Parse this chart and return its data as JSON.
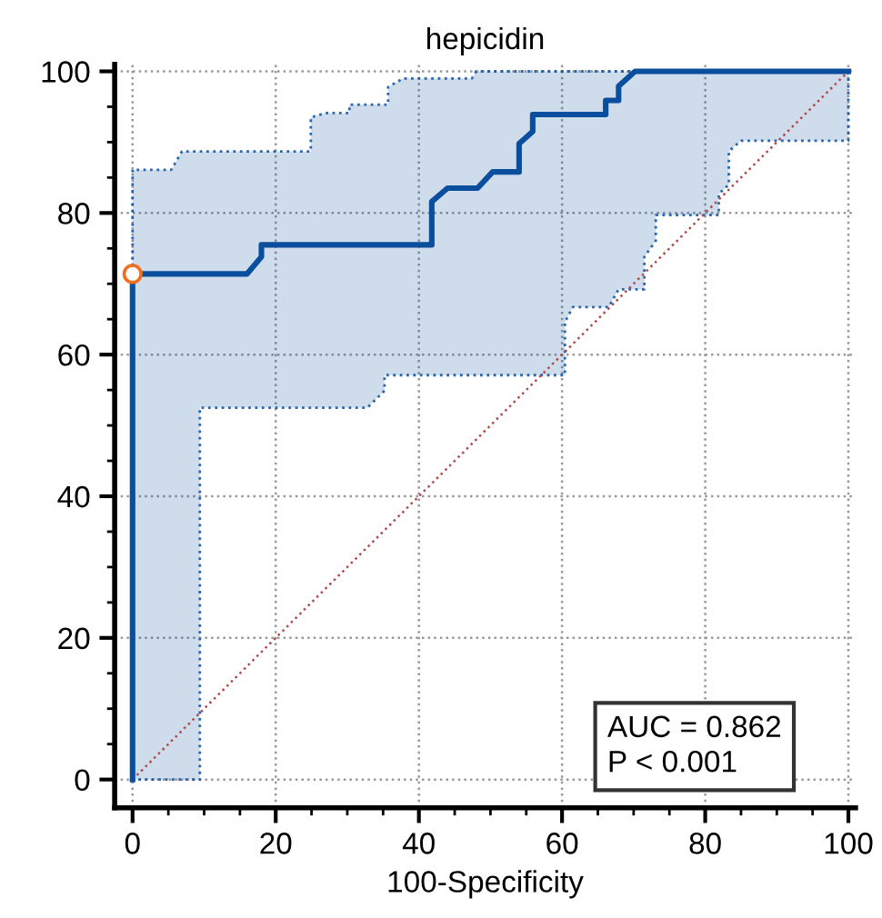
{
  "chart_data": {
    "type": "line",
    "title": "hepicidin",
    "xlabel": "100-Specificity",
    "xlim": [
      -2.5,
      101
    ],
    "ylim": [
      -4,
      101
    ],
    "xticks": [
      0,
      {
        "value": 5,
        "label": null
      },
      {
        "value": 10,
        "label": null
      },
      {
        "value": 15,
        "label": null
      },
      20,
      {
        "value": 25,
        "label": null
      },
      {
        "value": 30,
        "label": null
      },
      {
        "value": 35,
        "label": null
      },
      40,
      {
        "value": 45,
        "label": null
      },
      {
        "value": 50,
        "label": null
      },
      {
        "value": 55,
        "label": null
      },
      60,
      {
        "value": 65,
        "label": null
      },
      {
        "value": 70,
        "label": null
      },
      {
        "value": 75,
        "label": null
      },
      80,
      {
        "value": 85,
        "label": null
      },
      {
        "value": 90,
        "label": null
      },
      {
        "value": 95,
        "label": null
      },
      100
    ],
    "yticks": [
      0,
      {
        "value": 5,
        "label": null
      },
      {
        "value": 10,
        "label": null
      },
      {
        "value": 15,
        "label": null
      },
      20,
      {
        "value": 25,
        "label": null
      },
      {
        "value": 30,
        "label": null
      },
      {
        "value": 35,
        "label": null
      },
      40,
      {
        "value": 45,
        "label": null
      },
      {
        "value": 50,
        "label": null
      },
      {
        "value": 55,
        "label": null
      },
      60,
      {
        "value": 65,
        "label": null
      },
      {
        "value": 70,
        "label": null
      },
      {
        "value": 75,
        "label": null
      },
      80,
      {
        "value": 85,
        "label": null
      },
      {
        "value": 90,
        "label": null
      },
      {
        "value": 95,
        "label": null
      },
      100
    ],
    "grid": true,
    "annotations": [
      "AUC = 0.862\nP < 0.001"
    ],
    "series": [
      {
        "type": "line",
        "color": "#b04a4a",
        "line_style": "dotted",
        "x": [
          0,
          100
        ],
        "values": [
          0,
          100
        ]
      },
      {
        "color": "#0a4f9e",
        "line_style": "solid",
        "x": [
          0,
          0,
          5.4,
          6.9,
          9.4,
          9.4,
          16,
          18,
          18,
          24.9,
          24.9,
          26.9,
          30.3,
          30.3,
          32.8,
          35.2,
          35.2,
          35.7,
          35.7,
          37.8,
          41.8,
          41.8,
          44,
          47.4,
          48,
          48.2,
          50.3,
          54,
          54,
          55.9,
          55.9,
          60.4,
          60.4,
          61.5,
          66.1,
          66.1,
          66.5,
          67.9,
          67.9,
          70.2,
          71.5,
          71.5,
          73.1,
          73.1,
          81.9,
          81.9,
          83.3,
          83.3,
          85,
          100
        ],
        "values": [
          0,
          71.4,
          71.4,
          71.4,
          71.4,
          71.4,
          71.4,
          73.8,
          75.5,
          75.5,
          75.5,
          75.5,
          75.5,
          75.5,
          75.5,
          75.5,
          75.5,
          75.5,
          75.5,
          75.5,
          75.5,
          81.6,
          83.5,
          83.5,
          83.5,
          83.5,
          85.8,
          85.8,
          89.8,
          91.5,
          93.9,
          93.9,
          93.9,
          93.9,
          93.9,
          95.9,
          95.9,
          95.9,
          97.9,
          100,
          100,
          100,
          100,
          100,
          100,
          100,
          100,
          100,
          100,
          100
        ],
        "lower": [
          0,
          0,
          0,
          0,
          0,
          52.5,
          52.5,
          52.5,
          52.5,
          52.5,
          52.5,
          52.5,
          52.5,
          52.5,
          52.5,
          54.9,
          57.1,
          57.1,
          57.1,
          57.1,
          57.1,
          57.1,
          57.1,
          57.1,
          57.1,
          57.1,
          57.1,
          57.1,
          57.1,
          57.1,
          57.1,
          57.1,
          64.6,
          66.7,
          66.7,
          66.7,
          66.7,
          69.2,
          69.2,
          69.2,
          69.2,
          73.8,
          76.1,
          79.7,
          79.7,
          82.7,
          84,
          88.7,
          90.2,
          90.2
        ],
        "upper": [
          86.1,
          86.1,
          86.1,
          88.7,
          88.7,
          88.7,
          88.7,
          88.7,
          88.7,
          88.7,
          93.5,
          94.1,
          94.1,
          95.3,
          95.3,
          95.3,
          95.3,
          95.3,
          97.8,
          99,
          99,
          99,
          99,
          99,
          100,
          100,
          100,
          100,
          100,
          100,
          100,
          100,
          100,
          100,
          100,
          100,
          100,
          100,
          100,
          100,
          100,
          100,
          100,
          100,
          100,
          100,
          100,
          100,
          100,
          100
        ]
      },
      {
        "type": "scatter",
        "color": "#f07020",
        "marker": "circle",
        "x": [
          0
        ],
        "values": [
          71.4
        ]
      }
    ]
  }
}
